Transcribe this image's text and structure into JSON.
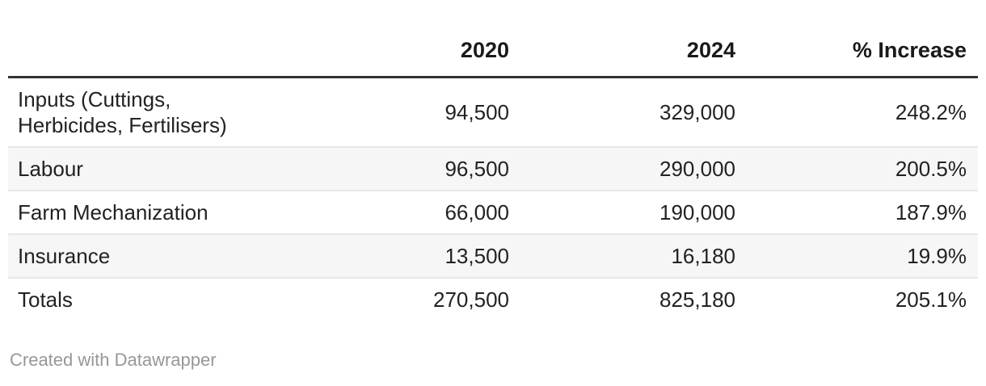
{
  "table": {
    "columns": [
      {
        "label": "",
        "align": "left"
      },
      {
        "label": "2020",
        "align": "right"
      },
      {
        "label": "2024",
        "align": "right"
      },
      {
        "label": "% Increase",
        "align": "right"
      }
    ],
    "rows": [
      {
        "label": "Inputs (Cuttings,\nHerbicides, Fertilisers)",
        "values": [
          "94,500",
          "329,000",
          "248.2%"
        ],
        "striped": false
      },
      {
        "label": "Labour",
        "values": [
          "96,500",
          "290,000",
          "200.5%"
        ],
        "striped": true
      },
      {
        "label": "Farm Mechanization",
        "values": [
          "66,000",
          "190,000",
          "187.9%"
        ],
        "striped": false
      },
      {
        "label": "Insurance",
        "values": [
          "13,500",
          "16,180",
          "19.9%"
        ],
        "striped": true
      },
      {
        "label": "Totals",
        "values": [
          "270,500",
          "825,180",
          "205.1%"
        ],
        "striped": false
      }
    ]
  },
  "footer": {
    "attribution": "Created with Datawrapper"
  },
  "colors": {
    "header_rule": "#333333",
    "row_border": "#e8e8e8",
    "row_stripe": "#f6f6f6",
    "header_text": "#1a1a1a",
    "body_text": "#222222",
    "attribution_text": "#979797",
    "background": "#ffffff"
  },
  "chart_data": {
    "type": "table",
    "title": "",
    "columns": [
      "",
      "2020",
      "2024",
      "% Increase"
    ],
    "rows": [
      [
        "Inputs (Cuttings, Herbicides, Fertilisers)",
        94500,
        329000,
        "248.2%"
      ],
      [
        "Labour",
        96500,
        290000,
        "200.5%"
      ],
      [
        "Farm Mechanization",
        66000,
        190000,
        "187.9%"
      ],
      [
        "Insurance",
        13500,
        16180,
        "19.9%"
      ],
      [
        "Totals",
        270500,
        825180,
        "205.1%"
      ]
    ],
    "layout_hints": {
      "numeric_columns_align": "right",
      "striped_rows": [
        1,
        3
      ],
      "attribution": "Created with Datawrapper"
    }
  }
}
